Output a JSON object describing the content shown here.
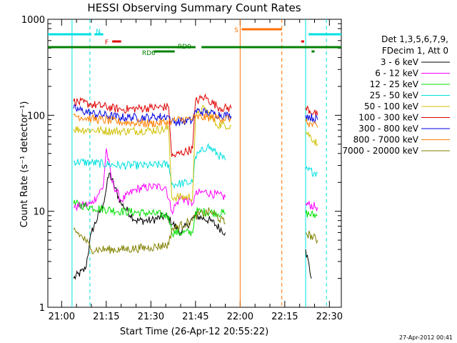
{
  "chart_data": {
    "type": "line",
    "title": "HESSI Observing Summary Count Rates",
    "xlabel": "Start Time (26-Apr-12 20:55:22)",
    "ylabel": "Count Rate (s⁻¹ detector⁻¹)",
    "y_scale": "log",
    "ylim": [
      1,
      1000
    ],
    "xlim": [
      "20:55:22",
      "22:34:00"
    ],
    "x_ticks": [
      "21:00",
      "21:15",
      "21:30",
      "21:45",
      "22:00",
      "22:15",
      "22:30"
    ],
    "y_ticks": [
      "1",
      "10",
      "100",
      "1000"
    ],
    "timestamp": "27-Apr-2012 00:41",
    "legend": {
      "header": [
        "Det 1,3,5,6,7,9,",
        "FDecim 1, Att 0"
      ],
      "position": "right"
    },
    "flags": [
      {
        "label": "N",
        "color": "#00e0e0",
        "segments": [
          [
            "20:55:22",
            "21:10:00"
          ],
          [
            "21:11:00",
            "21:14:00"
          ],
          [
            "22:23:00",
            "22:34:00"
          ]
        ]
      },
      {
        "label": "F",
        "color": "#e00000",
        "segments": [
          [
            "21:17:00",
            "21:20:00"
          ],
          [
            "22:20:30",
            "22:21:30"
          ]
        ]
      },
      {
        "label": "S",
        "color": "#ff7000",
        "segments": [
          [
            "22:00:30",
            "22:14:00"
          ]
        ]
      },
      {
        "label": "RD0",
        "color": "#008000",
        "segments": [
          [
            "20:55:22",
            "21:45:00"
          ],
          [
            "21:47:00",
            "22:34:00"
          ]
        ]
      },
      {
        "label": "RD6",
        "color": "#008000",
        "segments": [
          [
            "21:31:00",
            "21:38:00"
          ],
          [
            "22:24:00",
            "22:25:00"
          ]
        ]
      }
    ],
    "vlines": [
      {
        "time": "21:03:30",
        "color": "#00e0e0",
        "style": "solid"
      },
      {
        "time": "21:09:30",
        "color": "#00e0e0",
        "style": "dashed"
      },
      {
        "time": "22:00:00",
        "color": "#ff7000",
        "style": "solid"
      },
      {
        "time": "22:14:00",
        "color": "#ff7000",
        "style": "dashed"
      },
      {
        "time": "22:22:00",
        "color": "#00e0e0",
        "style": "solid"
      },
      {
        "time": "22:29:00",
        "color": "#00e0e0",
        "style": "dashed"
      }
    ],
    "series": [
      {
        "name": "3 - 6 keV",
        "color": "#000000",
        "points": [
          [
            "21:04",
            2.0
          ],
          [
            "21:08",
            2.5
          ],
          [
            "21:10",
            6.0
          ],
          [
            "21:14",
            12.0
          ],
          [
            "21:16",
            25.0
          ],
          [
            "21:20",
            12.0
          ],
          [
            "21:25",
            8.0
          ],
          [
            "21:30",
            8.0
          ],
          [
            "21:35",
            9.0
          ],
          [
            "21:40",
            6.0
          ],
          [
            "21:45",
            9.0
          ],
          [
            "21:50",
            8.0
          ],
          [
            "21:55",
            6.0
          ],
          [
            "22:22",
            4.0
          ],
          [
            "22:24",
            2.0
          ]
        ]
      },
      {
        "name": "6 - 12 keV",
        "color": "#ff00ff",
        "points": [
          [
            "21:04",
            11.0
          ],
          [
            "21:10",
            12.0
          ],
          [
            "21:14",
            18.0
          ],
          [
            "21:15",
            45.0
          ],
          [
            "21:17",
            20.0
          ],
          [
            "21:20",
            13.0
          ],
          [
            "21:25",
            17.0
          ],
          [
            "21:30",
            18.0
          ],
          [
            "21:35",
            18.0
          ],
          [
            "21:37",
            10.0
          ],
          [
            "21:40",
            14.0
          ],
          [
            "21:44",
            12.0
          ],
          [
            "21:45",
            15.0
          ],
          [
            "21:48",
            16.0
          ],
          [
            "21:55",
            14.0
          ],
          [
            "22:22",
            12.0
          ],
          [
            "22:26",
            11.0
          ]
        ]
      },
      {
        "name": "12 - 25 keV",
        "color": "#00e000",
        "points": [
          [
            "21:04",
            12.0
          ],
          [
            "21:10",
            11.0
          ],
          [
            "21:20",
            10.0
          ],
          [
            "21:30",
            9.5
          ],
          [
            "21:36",
            9.0
          ],
          [
            "21:37",
            6.0
          ],
          [
            "21:44",
            6.0
          ],
          [
            "21:45",
            10.0
          ],
          [
            "21:55",
            9.5
          ],
          [
            "22:22",
            9.5
          ],
          [
            "22:26",
            9.0
          ]
        ]
      },
      {
        "name": "25 - 50 keV",
        "color": "#00e0e0",
        "points": [
          [
            "21:04",
            33.0
          ],
          [
            "21:10",
            32.0
          ],
          [
            "21:20",
            30.0
          ],
          [
            "21:30",
            30.0
          ],
          [
            "21:36",
            31.0
          ],
          [
            "21:37",
            19.0
          ],
          [
            "21:44",
            20.0
          ],
          [
            "21:45",
            37.0
          ],
          [
            "21:49",
            48.0
          ],
          [
            "21:55",
            34.0
          ],
          [
            "22:22",
            27.0
          ],
          [
            "22:26",
            25.0
          ]
        ]
      },
      {
        "name": "50 - 100 keV",
        "color": "#d0c000",
        "points": [
          [
            "21:04",
            72.0
          ],
          [
            "21:10",
            70.0
          ],
          [
            "21:20",
            68.0
          ],
          [
            "21:30",
            70.0
          ],
          [
            "21:36",
            72.0
          ],
          [
            "21:37",
            14.0
          ],
          [
            "21:44",
            14.0
          ],
          [
            "21:45",
            95.0
          ],
          [
            "21:48",
            120.0
          ],
          [
            "21:52",
            80.0
          ],
          [
            "21:57",
            78.0
          ],
          [
            "22:22",
            68.0
          ],
          [
            "22:26",
            50.0
          ]
        ]
      },
      {
        "name": "100 - 300 keV",
        "color": "#e00000",
        "points": [
          [
            "21:04",
            140.0
          ],
          [
            "21:10",
            130.0
          ],
          [
            "21:20",
            115.0
          ],
          [
            "21:30",
            120.0
          ],
          [
            "21:36",
            122.0
          ],
          [
            "21:37",
            37.0
          ],
          [
            "21:44",
            45.0
          ],
          [
            "21:45",
            140.0
          ],
          [
            "21:48",
            155.0
          ],
          [
            "21:53",
            120.0
          ],
          [
            "21:57",
            118.0
          ],
          [
            "22:22",
            120.0
          ],
          [
            "22:26",
            100.0
          ]
        ]
      },
      {
        "name": "300 - 800 keV",
        "color": "#0000e0",
        "points": [
          [
            "21:04",
            118.0
          ],
          [
            "21:10",
            105.0
          ],
          [
            "21:20",
            95.0
          ],
          [
            "21:30",
            95.0
          ],
          [
            "21:36",
            98.0
          ],
          [
            "21:37",
            85.0
          ],
          [
            "21:44",
            88.0
          ],
          [
            "21:45",
            112.0
          ],
          [
            "21:50",
            105.0
          ],
          [
            "21:57",
            98.0
          ],
          [
            "22:22",
            100.0
          ],
          [
            "22:26",
            90.0
          ]
        ]
      },
      {
        "name": "800 - 7000 keV",
        "color": "#ff8000",
        "points": [
          [
            "21:04",
            100.0
          ],
          [
            "21:10",
            92.0
          ],
          [
            "21:20",
            85.0
          ],
          [
            "21:30",
            82.0
          ],
          [
            "21:36",
            85.0
          ],
          [
            "21:37",
            88.0
          ],
          [
            "21:44",
            92.0
          ],
          [
            "21:45",
            95.0
          ],
          [
            "21:50",
            95.0
          ],
          [
            "21:57",
            92.0
          ],
          [
            "22:22",
            85.0
          ],
          [
            "22:26",
            75.0
          ]
        ]
      },
      {
        "name": "7000 - 20000 keV",
        "color": "#808000",
        "points": [
          [
            "21:04",
            6.5
          ],
          [
            "21:08",
            5.0
          ],
          [
            "21:10",
            4.0
          ],
          [
            "21:20",
            4.0
          ],
          [
            "21:30",
            4.2
          ],
          [
            "21:36",
            4.5
          ],
          [
            "21:37",
            6.5
          ],
          [
            "21:44",
            8.0
          ],
          [
            "21:45",
            9.0
          ],
          [
            "21:50",
            10.0
          ],
          [
            "21:55",
            7.5
          ],
          [
            "22:22",
            6.0
          ],
          [
            "22:26",
            5.0
          ]
        ]
      }
    ]
  }
}
